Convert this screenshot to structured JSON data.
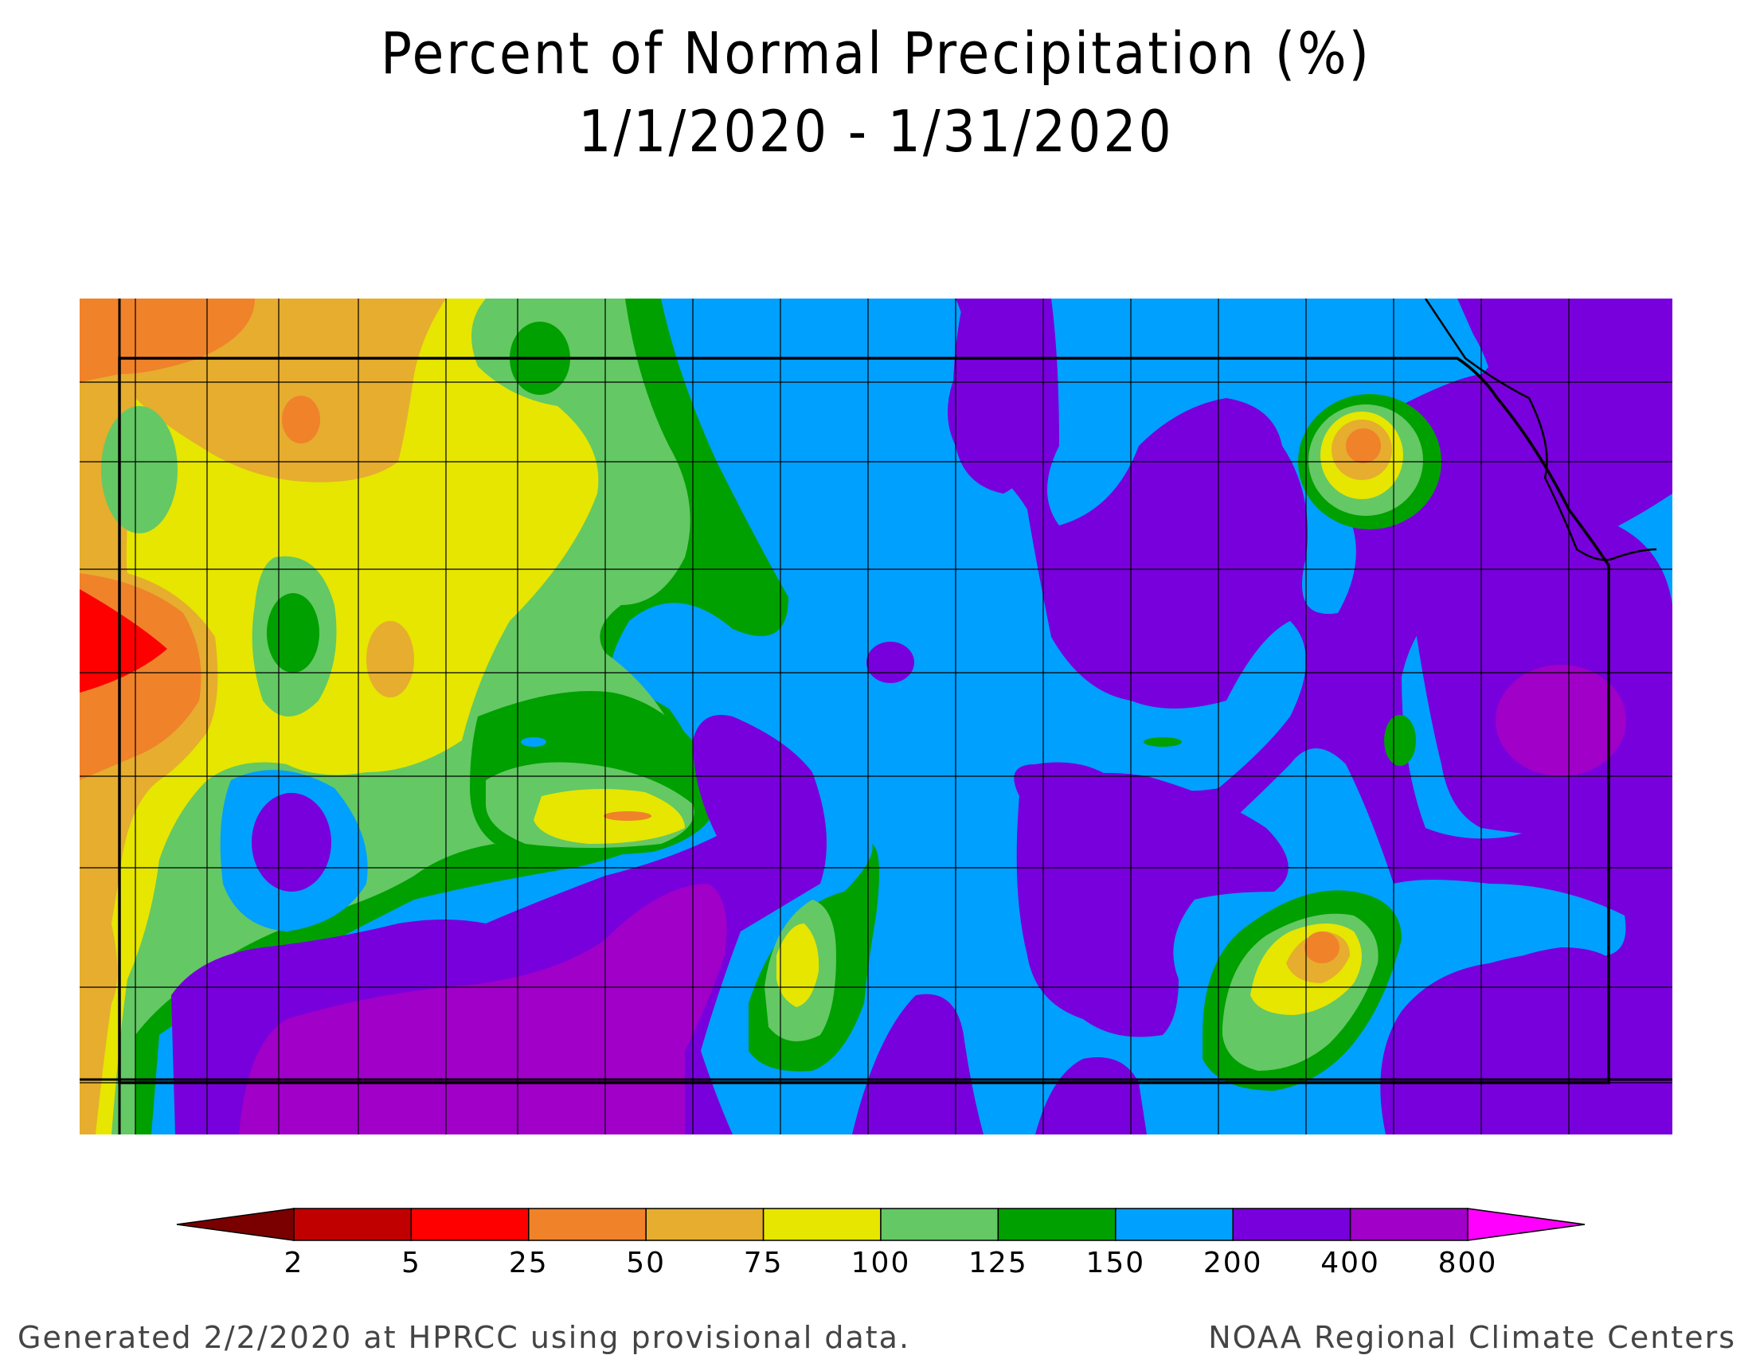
{
  "title": {
    "line1": "Percent of Normal Precipitation (%)",
    "line2": "1/1/2020 - 1/31/2020"
  },
  "legend": {
    "bins": [
      {
        "color": "#7a0000"
      },
      {
        "color": "#c00000"
      },
      {
        "color": "#ff0000"
      },
      {
        "color": "#f0822a"
      },
      {
        "color": "#e6ad2e"
      },
      {
        "color": "#e6e600"
      },
      {
        "color": "#64c864"
      },
      {
        "color": "#00a000"
      },
      {
        "color": "#00a0ff"
      },
      {
        "color": "#7800dc"
      },
      {
        "color": "#a000c8"
      },
      {
        "color": "#ff00ff"
      }
    ],
    "labels": [
      "2",
      "5",
      "25",
      "50",
      "75",
      "100",
      "125",
      "150",
      "200",
      "400",
      "800"
    ]
  },
  "footer": {
    "left": "Generated 2/2/2020 at HPRCC using provisional data.",
    "right": "NOAA Regional Climate Centers"
  }
}
